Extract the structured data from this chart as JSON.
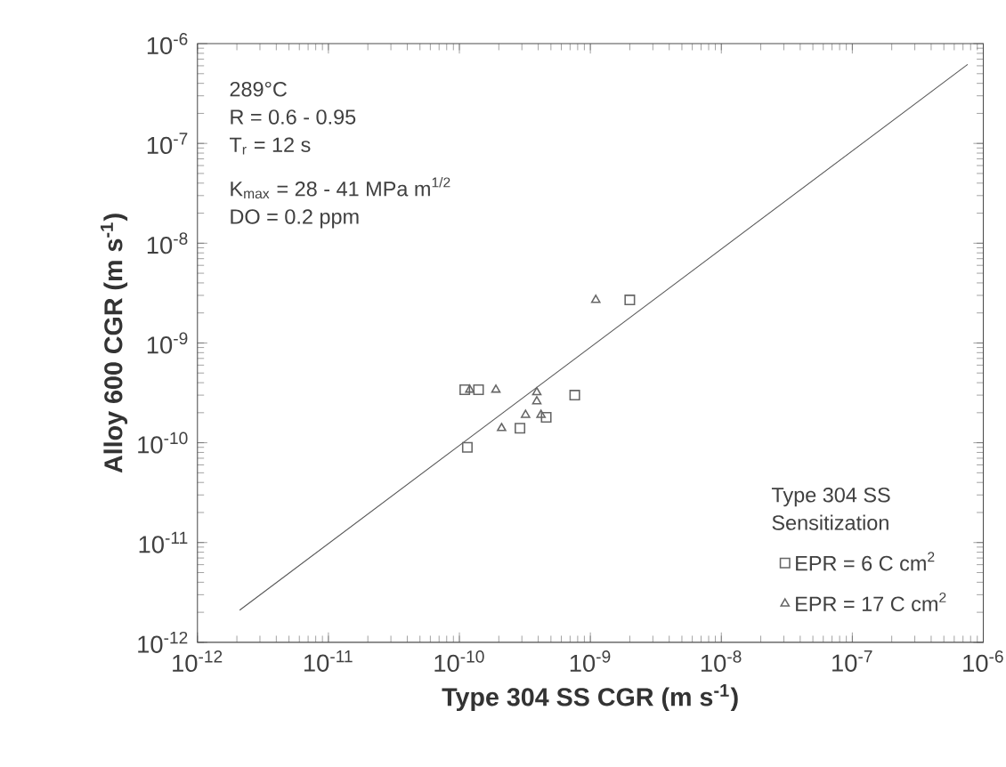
{
  "chart_data": {
    "type": "scatter",
    "xlabel": "Type 304 SS CGR (m s$^{-1}$)",
    "ylabel": "Alloy 600 CGR (m s$^{-1}$)",
    "legend_title": "Type 304 SS Sensitization",
    "annotations": [
      "289°C",
      "R = 0.6 - 0.95",
      "T$_{r}$ = 12 s",
      "K$_{max}$ = 28 - 41 MPa m$^{1/2}$",
      "DO = 0.2 ppm"
    ],
    "log": "xy",
    "grid": false,
    "legend": "bottom right",
    "xlim": [
      1e-12,
      1e-06
    ],
    "ylim": [
      1e-12,
      1e-06
    ],
    "xticks": [
      {
        "value": 1e-12,
        "label": "10$^{-12}$"
      },
      {
        "value": 1e-11,
        "label": "10$^{-11}$"
      },
      {
        "value": 1e-10,
        "label": "10$^{-10}$"
      },
      {
        "value": 1e-09,
        "label": "10$^{-9}$"
      },
      {
        "value": 1e-08,
        "label": "10$^{-8}$"
      },
      {
        "value": 1e-07,
        "label": "10$^{-7}$"
      },
      {
        "value": 1e-06,
        "label": "10$^{-6}$"
      }
    ],
    "yticks": [
      {
        "value": 1e-12,
        "label": "10$^{-12}$"
      },
      {
        "value": 1e-11,
        "label": "10$^{-11}$"
      },
      {
        "value": 1e-10,
        "label": "10$^{-10}$"
      },
      {
        "value": 1e-09,
        "label": "10$^{-9}$"
      },
      {
        "value": 1e-08,
        "label": "10$^{-8}$"
      },
      {
        "value": 1e-07,
        "label": "10$^{-7}$"
      },
      {
        "value": 1e-06,
        "label": "10$^{-6}$"
      }
    ],
    "series": [
      {
        "type": "line",
        "color": "#555555",
        "x": [
          2.1e-12,
          7.6e-07
        ],
        "values": [
          2.1e-12,
          6.2e-07
        ],
        "marker": "none",
        "line_style": "solid"
      },
      {
        "name": "EPR = 6 C cm$^{2}$",
        "color": "#666666",
        "marker": "square",
        "x": [
          2e-09,
          1.1e-10,
          1.4e-10,
          7.6e-10,
          2.9e-10,
          4.6e-10,
          1.15e-10
        ],
        "values": [
          2.7e-09,
          3.4e-10,
          3.4e-10,
          3e-10,
          1.4e-10,
          1.8e-10,
          9e-11
        ]
      },
      {
        "name": "EPR = 17 C cm$^{2}$",
        "color": "#666666",
        "marker": "triangle",
        "x": [
          1.1e-09,
          1.2e-10,
          1.9e-10,
          3.9e-10,
          2.1e-10,
          3.2e-10,
          4.2e-10,
          3.9e-10
        ],
        "values": [
          2.7e-09,
          3.4e-10,
          3.4e-10,
          3.2e-10,
          1.4e-10,
          1.9e-10,
          1.9e-10,
          2.6e-10
        ]
      }
    ]
  }
}
